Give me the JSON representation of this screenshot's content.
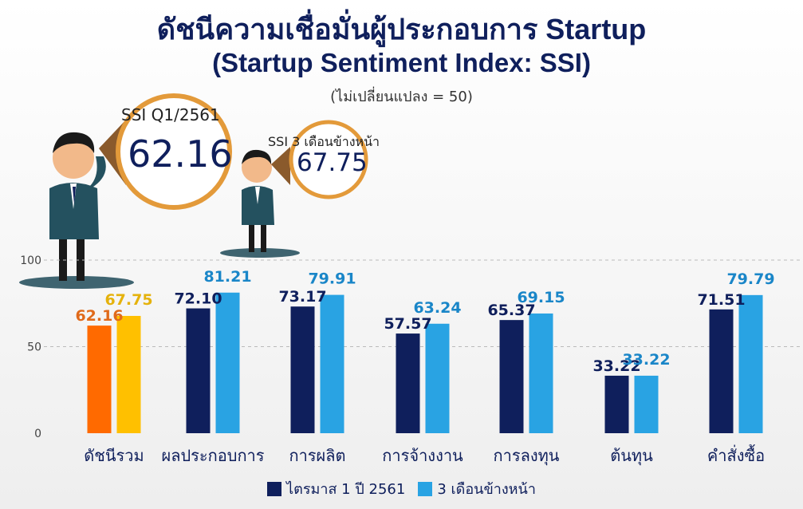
{
  "title": "ดัชนีความเชื่อมั่นผู้ประกอบการ Startup",
  "subtitle": "(Startup Sentiment Index: SSI)",
  "note": "(ไม่เปลี่ยนแปลง = 50)",
  "callouts": {
    "current_label": "SSI Q1/2561",
    "current_value": "62.16",
    "forecast_label": "SSI 3 เดือนข้างหน้า",
    "forecast_value": "67.75"
  },
  "colors": {
    "series1": "#0f1f5c",
    "series2": "#29a3e3",
    "highlight1": "#ff6a00",
    "highlight2": "#ffc000",
    "label1": "#0f1f5c",
    "label2": "#1a86c8",
    "highlight_label1": "#e06a1b",
    "highlight_label2": "#e5b20c"
  },
  "chart_data": {
    "type": "bar",
    "categories": [
      "ดัชนีรวม",
      "ผลประกอบการ",
      "การผลิต",
      "การจ้างงาน",
      "การลงทุน",
      "ต้นทุน",
      "คำสั่งซื้อ"
    ],
    "series": [
      {
        "name": "ไตรมาส 1 ปี 2561",
        "values": [
          62.16,
          72.1,
          73.17,
          57.57,
          65.37,
          33.22,
          71.51
        ],
        "labels": [
          "62.16",
          "72.10",
          "73.17",
          "57.57",
          "65.37",
          "33.22",
          "71.51"
        ]
      },
      {
        "name": "3 เดือนข้างหน้า",
        "values": [
          67.75,
          81.21,
          79.91,
          63.24,
          69.15,
          33.22,
          79.79
        ],
        "labels": [
          "67.75",
          "81.21",
          "79.91",
          "63.24",
          "69.15",
          "33.22",
          "79.79"
        ]
      }
    ],
    "yticks": [
      "0",
      "50",
      "100"
    ],
    "ylim": [
      0,
      100
    ],
    "gridlines": "dashed at 50 and 100",
    "legend_position": "bottom"
  }
}
